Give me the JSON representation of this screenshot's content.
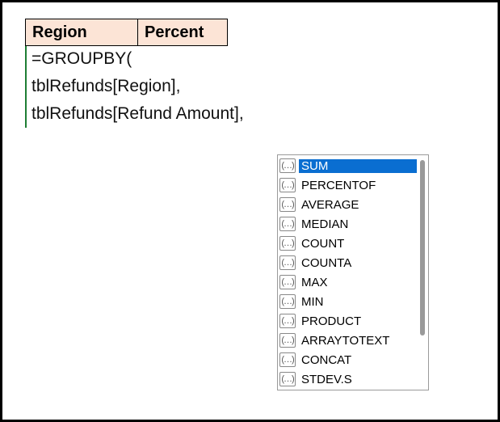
{
  "headers": {
    "col1": "Region",
    "col2": "Percent"
  },
  "formula": {
    "line1": "=GROUPBY(",
    "line2": "tblRefunds[Region],",
    "line3": "tblRefunds[Refund Amount],"
  },
  "dropdown": {
    "items": [
      {
        "label": "SUM",
        "selected": true
      },
      {
        "label": "PERCENTOF",
        "selected": false
      },
      {
        "label": "AVERAGE",
        "selected": false
      },
      {
        "label": "MEDIAN",
        "selected": false
      },
      {
        "label": "COUNT",
        "selected": false
      },
      {
        "label": "COUNTA",
        "selected": false
      },
      {
        "label": "MAX",
        "selected": false
      },
      {
        "label": "MIN",
        "selected": false
      },
      {
        "label": "PRODUCT",
        "selected": false
      },
      {
        "label": "ARRAYTOTEXT",
        "selected": false
      },
      {
        "label": "CONCAT",
        "selected": false
      },
      {
        "label": "STDEV.S",
        "selected": false
      }
    ],
    "icon_glyph": "(…)"
  },
  "colors": {
    "header_bg": "#fce4d6",
    "header_border": "#000000",
    "formula_edit_border": "#1e7e34",
    "selection_bg": "#0a6ed1",
    "dropdown_border": "#9a9a9a",
    "scroll_thumb": "#9a9a9a"
  }
}
